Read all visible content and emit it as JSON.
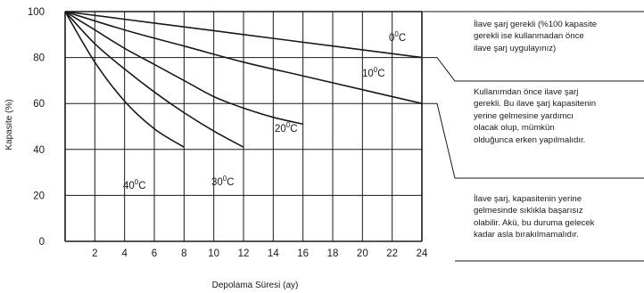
{
  "chart_data": {
    "type": "line",
    "xlabel": "Depolama Süresi (ay)",
    "ylabel": "Kapasite (%)",
    "xlim": [
      0,
      24
    ],
    "ylim": [
      0,
      100
    ],
    "x_ticks": [
      "2",
      "4",
      "6",
      "8",
      "10",
      "12",
      "14",
      "16",
      "18",
      "20",
      "22",
      "24"
    ],
    "y_ticks": [
      "0",
      "20",
      "40",
      "60",
      "80",
      "100"
    ],
    "grid": true,
    "series": [
      {
        "name": "0°C",
        "label_base": "0",
        "points": [
          [
            0,
            100
          ],
          [
            6,
            95
          ],
          [
            12,
            90
          ],
          [
            18,
            85
          ],
          [
            24,
            80
          ]
        ]
      },
      {
        "name": "10°C",
        "label_base": "10",
        "points": [
          [
            0,
            100
          ],
          [
            4,
            92
          ],
          [
            8,
            85
          ],
          [
            12,
            78
          ],
          [
            16,
            72
          ],
          [
            20,
            66
          ],
          [
            24,
            60
          ]
        ]
      },
      {
        "name": "20°C",
        "label_base": "20",
        "points": [
          [
            0,
            100
          ],
          [
            2,
            92
          ],
          [
            4,
            84
          ],
          [
            6,
            77
          ],
          [
            8,
            70
          ],
          [
            10,
            63
          ],
          [
            12,
            58
          ],
          [
            14,
            54
          ],
          [
            16,
            51
          ]
        ]
      },
      {
        "name": "30°C",
        "label_base": "30",
        "points": [
          [
            0,
            100
          ],
          [
            2,
            86
          ],
          [
            4,
            75
          ],
          [
            6,
            65
          ],
          [
            8,
            56
          ],
          [
            10,
            48
          ],
          [
            12,
            41
          ]
        ]
      },
      {
        "name": "40°C",
        "label_base": "40",
        "points": [
          [
            0,
            100
          ],
          [
            2,
            78
          ],
          [
            4,
            61
          ],
          [
            6,
            49
          ],
          [
            8,
            41
          ]
        ]
      }
    ],
    "annotations": [
      {
        "text": "İlave şarj gerekli (%100 kapasite\ngerekli ise kullanmadan önce\nilave şarj uygulayınız)",
        "range": [
          80,
          100
        ]
      },
      {
        "text": "Kullanımdan önce ilave şarj\ngerekli. Bu ilave şarj kapasitenin\nyerine gelmesine yardımcı\nolacak olup, mümkün\nolduğunca erken yapılmalıdır.",
        "range": [
          60,
          80
        ]
      },
      {
        "text": "İlave şarj, kapasitenin yerine\ngelmesinde sıklıkla başarısız\nolabilir. Akü, bu duruma gelecek\nkadar asla bırakılmamalıdır.",
        "range": [
          0,
          60
        ]
      }
    ],
    "degree_sign": "0",
    "unit_letter": "C"
  }
}
